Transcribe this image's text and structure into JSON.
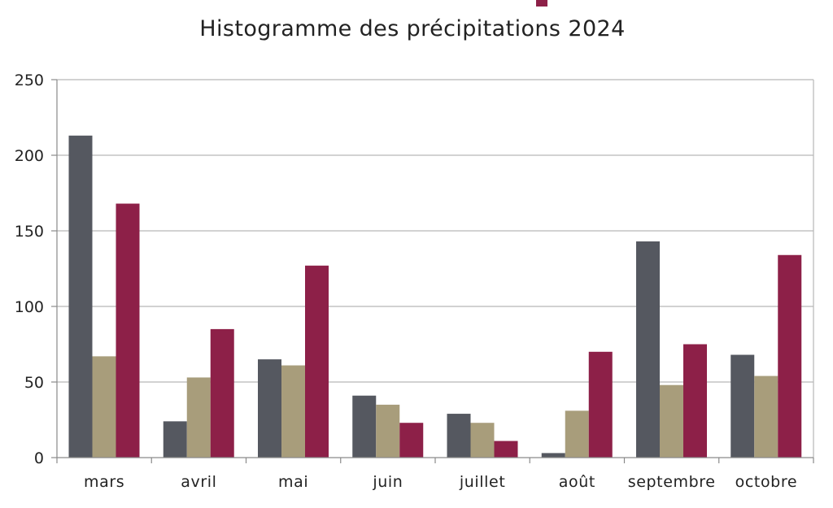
{
  "chart_data": {
    "type": "bar",
    "title": "Histogramme des précipitations 2024",
    "xlabel": "",
    "ylabel": "",
    "ylim": [
      0,
      250
    ],
    "yticks": [
      0,
      50,
      100,
      150,
      200,
      250
    ],
    "categories": [
      "mars",
      "avril",
      "mai",
      "juin",
      "juillet",
      "août",
      "septembre",
      "octobre"
    ],
    "series": [
      {
        "values": [
          213,
          24,
          65,
          41,
          29,
          3,
          143,
          68
        ],
        "color": "#555860"
      },
      {
        "values": [
          67,
          53,
          61,
          35,
          23,
          31,
          48,
          54
        ],
        "color": "#a89d7b"
      },
      {
        "values": [
          168,
          85,
          127,
          23,
          11,
          70,
          75,
          134
        ],
        "color": "#8d2048"
      }
    ],
    "grid": true,
    "legend": "top"
  }
}
